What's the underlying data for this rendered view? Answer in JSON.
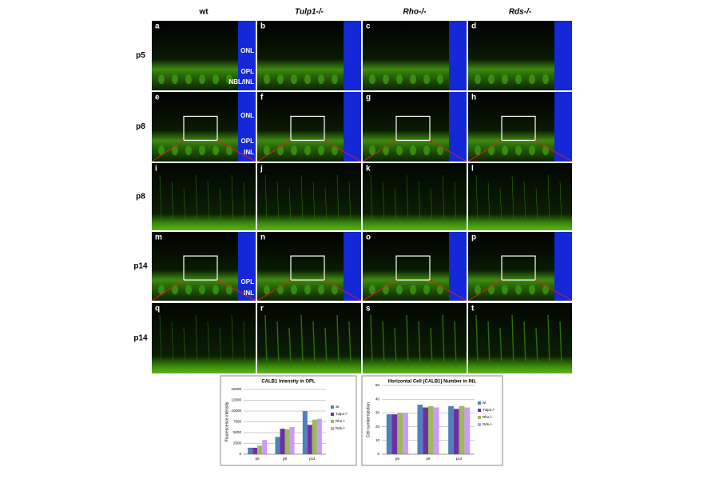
{
  "figure": {
    "column_headers": [
      "wt",
      "Tulp1-/-",
      "Rho-/-",
      "Rds-/-"
    ],
    "row_labels": [
      "p5",
      "p8",
      "p8",
      "p14",
      "p14"
    ],
    "panel_letters": [
      "a",
      "b",
      "c",
      "d",
      "e",
      "f",
      "g",
      "h",
      "i",
      "j",
      "k",
      "l",
      "m",
      "n",
      "o",
      "p",
      "q",
      "r",
      "s",
      "t"
    ],
    "panel_a_layers": [
      "ONL",
      "OPL",
      "NBL/INL"
    ],
    "panel_e_layers": [
      "ONL",
      "OPL",
      "INL"
    ],
    "panel_m_layers": [
      "OPL",
      "INL"
    ]
  },
  "chart_data": [
    {
      "type": "bar",
      "title": "CALB1 Intensity in OPL",
      "y_label": "Fluorescence intensity",
      "categories": [
        "p5",
        "p8",
        "p14"
      ],
      "series": [
        {
          "name": "wt",
          "color": "#4f81bd",
          "values": [
            1500,
            4000,
            10000
          ]
        },
        {
          "name": "Tulp1-/-",
          "color": "#7030a0",
          "values": [
            1500,
            5900,
            6800
          ]
        },
        {
          "name": "Rho-/-",
          "color": "#9bbb59",
          "values": [
            2000,
            5800,
            8000
          ]
        },
        {
          "name": "Rds-/-",
          "color": "#cc99ff",
          "values": [
            3300,
            6300,
            8200
          ]
        }
      ],
      "ylim": [
        0,
        15000
      ],
      "yticks": [
        0,
        2500,
        5000,
        7500,
        10000,
        12500,
        15000
      ],
      "grid": true
    },
    {
      "type": "bar",
      "title": "Horizontal Cell (CALB1) Number in INL",
      "y_label": "Cell number/section",
      "categories": [
        "p5",
        "p8",
        "p14"
      ],
      "series": [
        {
          "name": "wt",
          "color": "#4f81bd",
          "values": [
            29,
            36,
            35
          ]
        },
        {
          "name": "Tulp1-/-",
          "color": "#7030a0",
          "values": [
            29,
            34,
            33
          ]
        },
        {
          "name": "Rho-/-",
          "color": "#9bbb59",
          "values": [
            30,
            35,
            35
          ]
        },
        {
          "name": "Rds-/-",
          "color": "#cc99ff",
          "values": [
            30,
            34,
            34
          ]
        }
      ],
      "ylim": [
        0,
        50
      ],
      "yticks": [
        0,
        10,
        20,
        30,
        40,
        50
      ],
      "grid": true
    }
  ]
}
